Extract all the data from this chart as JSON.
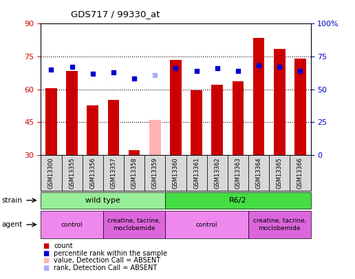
{
  "title": "GDS717 / 99330_at",
  "samples": [
    "GSM13300",
    "GSM13355",
    "GSM13356",
    "GSM13357",
    "GSM13358",
    "GSM13359",
    "GSM13360",
    "GSM13361",
    "GSM13362",
    "GSM13363",
    "GSM13364",
    "GSM13365",
    "GSM13366"
  ],
  "bar_values": [
    60.5,
    68.5,
    52.5,
    55.0,
    32.0,
    46.0,
    73.5,
    59.5,
    62.0,
    63.5,
    83.5,
    78.5,
    74.0
  ],
  "bar_colors": [
    "#cc0000",
    "#cc0000",
    "#cc0000",
    "#cc0000",
    "#cc0000",
    "#ffb3b3",
    "#cc0000",
    "#cc0000",
    "#cc0000",
    "#cc0000",
    "#cc0000",
    "#cc0000",
    "#cc0000"
  ],
  "rank_values": [
    65,
    67,
    62,
    63,
    58,
    61,
    66,
    64,
    66,
    64,
    68,
    67,
    64
  ],
  "rank_colors": [
    "#0000cc",
    "#0000cc",
    "#0000cc",
    "#0000cc",
    "#0000cc",
    "#aaaaff",
    "#0000cc",
    "#0000cc",
    "#0000cc",
    "#0000cc",
    "#0000cc",
    "#0000cc",
    "#0000cc"
  ],
  "ylim_left": [
    30,
    90
  ],
  "ylim_right": [
    0,
    100
  ],
  "yticks_left": [
    30,
    45,
    60,
    75,
    90
  ],
  "yticks_right": [
    0,
    25,
    50,
    75,
    100
  ],
  "ytick_labels_right": [
    "0",
    "25",
    "50",
    "75",
    "100%"
  ],
  "grid_values": [
    45,
    60,
    75
  ],
  "strain_groups": [
    {
      "label": "wild type",
      "start": 0,
      "end": 5,
      "color": "#99ee99"
    },
    {
      "label": "R6/2",
      "start": 6,
      "end": 12,
      "color": "#44dd44"
    }
  ],
  "agent_groups": [
    {
      "label": "control",
      "start": 0,
      "end": 2,
      "color": "#ee88ee"
    },
    {
      "label": "creatine, tacrine,\nmoclobemide",
      "start": 3,
      "end": 5,
      "color": "#dd66dd"
    },
    {
      "label": "control",
      "start": 6,
      "end": 9,
      "color": "#ee88ee"
    },
    {
      "label": "creatine, tacrine,\nmoclobemide",
      "start": 10,
      "end": 12,
      "color": "#dd66dd"
    }
  ],
  "bar_width": 0.55,
  "legend_items": [
    {
      "color": "#cc0000",
      "label": "count"
    },
    {
      "color": "#0000cc",
      "label": "percentile rank within the sample"
    },
    {
      "color": "#ffb3b3",
      "label": "value, Detection Call = ABSENT"
    },
    {
      "color": "#aaaaff",
      "label": "rank, Detection Call = ABSENT"
    }
  ]
}
